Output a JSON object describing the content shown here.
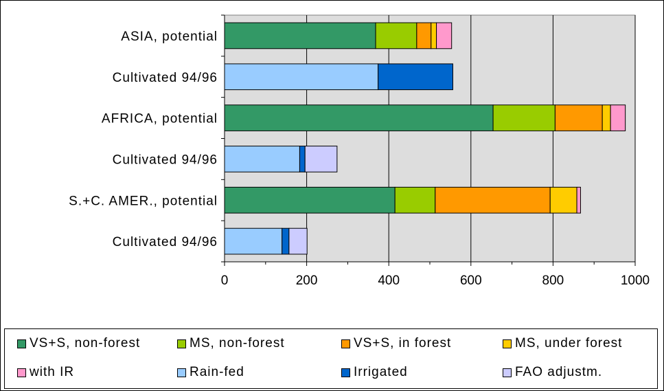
{
  "chart_data": {
    "type": "bar",
    "orientation": "horizontal",
    "stacked": true,
    "categories": [
      "ASIA, potential",
      "Cultivated 94/96",
      "AFRICA, potential",
      "Cultivated 94/96",
      "S.+C. AMER., potential",
      "Cultivated 94/96"
    ],
    "series": [
      {
        "name": "VS+S, non-forest",
        "color": "#339966",
        "values": [
          368,
          0,
          654,
          0,
          415,
          0
        ]
      },
      {
        "name": "MS, non-forest",
        "color": "#99cc00",
        "values": [
          100,
          0,
          151,
          0,
          98,
          0
        ]
      },
      {
        "name": "VS+S, in forest",
        "color": "#ff9900",
        "values": [
          35,
          0,
          115,
          0,
          280,
          0
        ]
      },
      {
        "name": "MS, under forest",
        "color": "#ffcc00",
        "values": [
          13,
          0,
          20,
          0,
          65,
          0
        ]
      },
      {
        "name": "with IR",
        "color": "#ff99cc",
        "values": [
          37,
          0,
          36,
          0,
          9,
          0
        ]
      },
      {
        "name": "Rain-fed",
        "color": "#99ccff",
        "values": [
          0,
          374,
          0,
          183,
          0,
          140
        ]
      },
      {
        "name": "Irrigated",
        "color": "#0066cc",
        "values": [
          0,
          182,
          0,
          13,
          0,
          17
        ]
      },
      {
        "name": "FAO adjustm.",
        "color": "#ccccff",
        "values": [
          0,
          0,
          0,
          78,
          0,
          44
        ]
      }
    ],
    "xlim": [
      0,
      1000
    ],
    "xticks": [
      0,
      200,
      400,
      600,
      800,
      1000
    ],
    "xgrid": true,
    "plot_background": "#dddddd",
    "legend_position": "bottom"
  },
  "legend": {
    "items": [
      {
        "label": "VS+S, non-forest",
        "color": "#339966"
      },
      {
        "label": "MS, non-forest",
        "color": "#99cc00"
      },
      {
        "label": "VS+S, in forest",
        "color": "#ff9900"
      },
      {
        "label": "MS, under forest",
        "color": "#ffcc00"
      },
      {
        "label": "with IR",
        "color": "#ff99cc"
      },
      {
        "label": "Rain-fed",
        "color": "#99ccff"
      },
      {
        "label": "Irrigated",
        "color": "#0066cc"
      },
      {
        "label": "FAO adjustm.",
        "color": "#ccccff"
      }
    ]
  }
}
